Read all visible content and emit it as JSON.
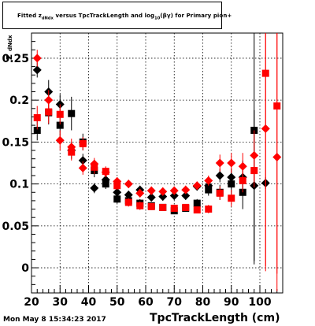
{
  "title": {
    "pre": "Fitted  z",
    "sub1": "dNdx",
    "mid": " versus TpcTrackLength and log",
    "sub2": "10",
    "post": "(βγ) for Primary pion+"
  },
  "footer": "Mon May  8 15:34:23 2017",
  "chart_data": {
    "type": "scatter",
    "title": "Fitted z_dNdx versus TpcTrackLength and log10(βγ) for Primary pion+",
    "xlabel": "TpcTrackLength (cm)",
    "ylabel_main": "z",
    "ylabel_sub": "dNdx",
    "xlim": [
      20,
      108
    ],
    "ylim": [
      -0.03,
      0.28
    ],
    "xticks": [
      20,
      30,
      40,
      50,
      60,
      70,
      80,
      90,
      100
    ],
    "xtick_labels": [
      "20",
      "30",
      "40",
      "50",
      "60",
      "70",
      "80",
      "90",
      "100"
    ],
    "yticks": [
      0,
      0.05,
      0.1,
      0.15,
      0.2,
      0.25
    ],
    "ytick_labels": [
      "0",
      "0.05",
      "0.1",
      "0.15",
      "0.2",
      "0.25"
    ],
    "grid": true,
    "series": [
      {
        "marker": "diamond",
        "color": "#000000",
        "points": [
          {
            "x": 22,
            "y": 0.236,
            "e": 0.009
          },
          {
            "x": 26,
            "y": 0.21,
            "e": 0.014
          },
          {
            "x": 30,
            "y": 0.195,
            "e": 0.012
          },
          {
            "x": 34,
            "y": 0.14,
            "e": 0.01
          },
          {
            "x": 38,
            "y": 0.128,
            "e": 0.008
          },
          {
            "x": 42,
            "y": 0.095,
            "e": 0.006
          },
          {
            "x": 46,
            "y": 0.105,
            "e": 0.006
          },
          {
            "x": 50,
            "y": 0.09,
            "e": 0.005
          },
          {
            "x": 54,
            "y": 0.087,
            "e": 0.005
          },
          {
            "x": 58,
            "y": 0.093,
            "e": 0.005
          },
          {
            "x": 62,
            "y": 0.084,
            "e": 0.005
          },
          {
            "x": 66,
            "y": 0.085,
            "e": 0.005
          },
          {
            "x": 70,
            "y": 0.086,
            "e": 0.005
          },
          {
            "x": 74,
            "y": 0.086,
            "e": 0.005
          },
          {
            "x": 78,
            "y": 0.097,
            "e": 0.005
          },
          {
            "x": 82,
            "y": 0.098,
            "e": 0.006
          },
          {
            "x": 86,
            "y": 0.11,
            "e": 0.008
          },
          {
            "x": 90,
            "y": 0.108,
            "e": 0.01
          },
          {
            "x": 94,
            "y": 0.108,
            "e": 0.02
          },
          {
            "x": 98,
            "y": 0.098,
            "e": 0.09
          },
          {
            "x": 102,
            "y": 0.101,
            "e": 0.007
          }
        ]
      },
      {
        "marker": "square",
        "color": "#000000",
        "points": [
          {
            "x": 22,
            "y": 0.164,
            "e": 0.012
          },
          {
            "x": 26,
            "y": 0.185,
            "e": 0.014
          },
          {
            "x": 30,
            "y": 0.17,
            "e": 0.014
          },
          {
            "x": 34,
            "y": 0.184,
            "e": 0.02
          },
          {
            "x": 38,
            "y": 0.15,
            "e": 0.01
          },
          {
            "x": 42,
            "y": 0.116,
            "e": 0.008
          },
          {
            "x": 46,
            "y": 0.1,
            "e": 0.006
          },
          {
            "x": 50,
            "y": 0.082,
            "e": 0.005
          },
          {
            "x": 54,
            "y": 0.08,
            "e": 0.005
          },
          {
            "x": 58,
            "y": 0.077,
            "e": 0.005
          },
          {
            "x": 62,
            "y": 0.074,
            "e": 0.004
          },
          {
            "x": 66,
            "y": 0.072,
            "e": 0.004
          },
          {
            "x": 70,
            "y": 0.068,
            "e": 0.004
          },
          {
            "x": 74,
            "y": 0.071,
            "e": 0.004
          },
          {
            "x": 78,
            "y": 0.077,
            "e": 0.005
          },
          {
            "x": 82,
            "y": 0.093,
            "e": 0.007
          },
          {
            "x": 86,
            "y": 0.09,
            "e": 0.009
          },
          {
            "x": 90,
            "y": 0.1,
            "e": 0.012
          },
          {
            "x": 94,
            "y": 0.09,
            "e": 0.02
          },
          {
            "x": 98,
            "y": 0.164,
            "e": 0.16
          }
        ]
      },
      {
        "marker": "diamond",
        "color": "#ff0000",
        "points": [
          {
            "x": 22,
            "y": 0.25,
            "e": 0.01
          },
          {
            "x": 26,
            "y": 0.2,
            "e": 0.012
          },
          {
            "x": 30,
            "y": 0.152,
            "e": 0.012
          },
          {
            "x": 34,
            "y": 0.144,
            "e": 0.01
          },
          {
            "x": 38,
            "y": 0.119,
            "e": 0.008
          },
          {
            "x": 42,
            "y": 0.124,
            "e": 0.007
          },
          {
            "x": 46,
            "y": 0.114,
            "e": 0.006
          },
          {
            "x": 50,
            "y": 0.103,
            "e": 0.005
          },
          {
            "x": 54,
            "y": 0.1,
            "e": 0.005
          },
          {
            "x": 58,
            "y": 0.089,
            "e": 0.005
          },
          {
            "x": 62,
            "y": 0.092,
            "e": 0.005
          },
          {
            "x": 66,
            "y": 0.091,
            "e": 0.005
          },
          {
            "x": 70,
            "y": 0.092,
            "e": 0.005
          },
          {
            "x": 74,
            "y": 0.093,
            "e": 0.005
          },
          {
            "x": 78,
            "y": 0.098,
            "e": 0.005
          },
          {
            "x": 82,
            "y": 0.104,
            "e": 0.006
          },
          {
            "x": 86,
            "y": 0.125,
            "e": 0.01
          },
          {
            "x": 90,
            "y": 0.125,
            "e": 0.012
          },
          {
            "x": 94,
            "y": 0.121,
            "e": 0.016
          },
          {
            "x": 98,
            "y": 0.134,
            "e": 0.03
          },
          {
            "x": 102,
            "y": 0.166,
            "e": 0.17
          },
          {
            "x": 106,
            "y": 0.132,
            "e": 0.16
          }
        ]
      },
      {
        "marker": "square",
        "color": "#ff0000",
        "points": [
          {
            "x": 22,
            "y": 0.179,
            "e": 0.014
          },
          {
            "x": 26,
            "y": 0.186,
            "e": 0.014
          },
          {
            "x": 30,
            "y": 0.183,
            "e": 0.012
          },
          {
            "x": 34,
            "y": 0.138,
            "e": 0.01
          },
          {
            "x": 38,
            "y": 0.148,
            "e": 0.008
          },
          {
            "x": 42,
            "y": 0.12,
            "e": 0.008
          },
          {
            "x": 46,
            "y": 0.115,
            "e": 0.006
          },
          {
            "x": 50,
            "y": 0.098,
            "e": 0.005
          },
          {
            "x": 54,
            "y": 0.078,
            "e": 0.005
          },
          {
            "x": 58,
            "y": 0.074,
            "e": 0.005
          },
          {
            "x": 62,
            "y": 0.073,
            "e": 0.004
          },
          {
            "x": 66,
            "y": 0.072,
            "e": 0.004
          },
          {
            "x": 70,
            "y": 0.071,
            "e": 0.004
          },
          {
            "x": 74,
            "y": 0.072,
            "e": 0.004
          },
          {
            "x": 78,
            "y": 0.069,
            "e": 0.004
          },
          {
            "x": 82,
            "y": 0.07,
            "e": 0.005
          },
          {
            "x": 86,
            "y": 0.089,
            "e": 0.008
          },
          {
            "x": 90,
            "y": 0.083,
            "e": 0.01
          },
          {
            "x": 94,
            "y": 0.104,
            "e": 0.014
          },
          {
            "x": 98,
            "y": 0.116,
            "e": 0.02
          },
          {
            "x": 102,
            "y": 0.232,
            "e": 0.23
          },
          {
            "x": 106,
            "y": 0.193,
            "e": 0.2
          }
        ]
      }
    ]
  }
}
